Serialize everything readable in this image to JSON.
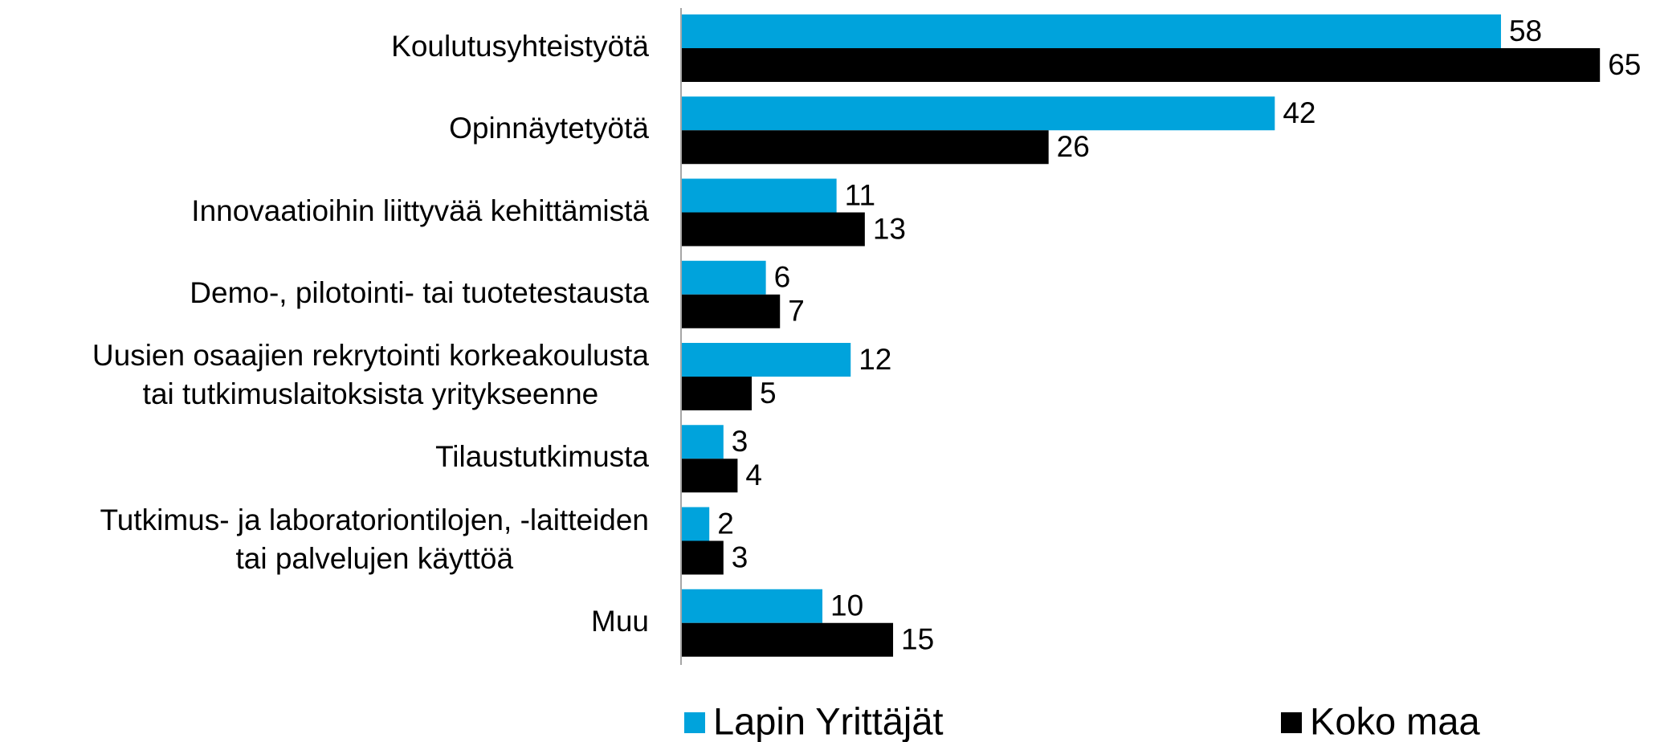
{
  "chart_data": {
    "type": "bar",
    "orientation": "horizontal",
    "categories": [
      "Koulutusyhteistyötä",
      "Opinnäytetyötä",
      "Innovaatioihin liittyvää kehittämistä",
      "Demo-, pilotointi- tai tuotetestausta",
      "Uusien osaajien rekrytointi korkeakoulusta\ntai tutkimuslaitoksista yritykseenne",
      "Tilaustutkimusta",
      "Tutkimus- ja laboratoriontilojen, -laitteiden\ntai palvelujen käyttöä",
      "Muu"
    ],
    "series": [
      {
        "name": "Lapin Yrittäjät",
        "color": "#00a3dc",
        "values": [
          58,
          42,
          11,
          6,
          12,
          3,
          2,
          10
        ]
      },
      {
        "name": "Koko maa",
        "color": "#000000",
        "values": [
          65,
          26,
          13,
          7,
          5,
          4,
          3,
          15
        ]
      }
    ],
    "xlim": [
      0,
      68
    ],
    "legend": "bottom"
  }
}
